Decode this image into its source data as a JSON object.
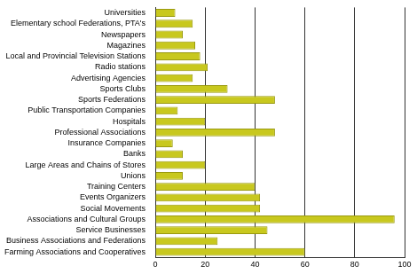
{
  "chart_data": {
    "type": "bar",
    "orientation": "horizontal",
    "categories": [
      "Universities",
      "Elementary school Federations, PTA's",
      "Newspapers",
      "Magazines",
      "Local and Provincial Television Stations",
      "Radio stations",
      "Advertising Agencies",
      "Sports Clubs",
      "Sports Federations",
      "Public Transportation Companies",
      "Hospitals",
      "Professional Associations",
      "Insurance Companies",
      "Banks",
      "Large Areas and Chains of Stores",
      "Unions",
      "Training Centers",
      "Events Organizers",
      "Social Movements",
      "Associations and Cultural Groups",
      "Service Businesses",
      "Business Associations and Federations",
      "Farming Associations and Cooperatives"
    ],
    "values": [
      8,
      15,
      11,
      16,
      18,
      21,
      15,
      29,
      48,
      9,
      20,
      48,
      7,
      11,
      20,
      11,
      40,
      42,
      42,
      96,
      45,
      25,
      60
    ],
    "color": "#c8c81e",
    "xlim": [
      0,
      100
    ],
    "xticks": [
      0,
      20,
      40,
      60,
      80,
      100
    ],
    "grid": true
  }
}
